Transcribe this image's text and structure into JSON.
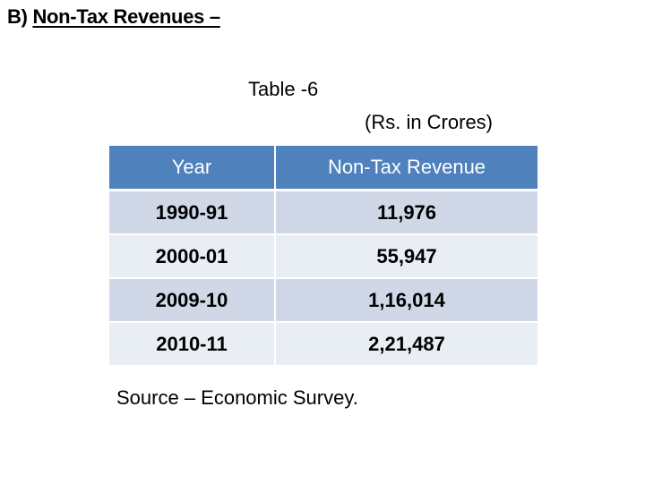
{
  "heading": {
    "prefix": "B)",
    "title": "Non-Tax Revenues –"
  },
  "table_caption": "Table -6",
  "table_units": "(Rs. in Crores)",
  "table": {
    "headers": [
      "Year",
      "Non-Tax Revenue"
    ],
    "rows": [
      {
        "year": "1990-91",
        "revenue": "11,976"
      },
      {
        "year": "2000-01",
        "revenue": "55,947"
      },
      {
        "year": "2009-10",
        "revenue": "1,16,014"
      },
      {
        "year": "2010-11",
        "revenue": "2,21,487"
      }
    ]
  },
  "source": "Source – Economic Survey.",
  "colors": {
    "header_bg": "#4f81bd",
    "row_dark": "#d0d8e8",
    "row_light": "#e9edf4"
  }
}
